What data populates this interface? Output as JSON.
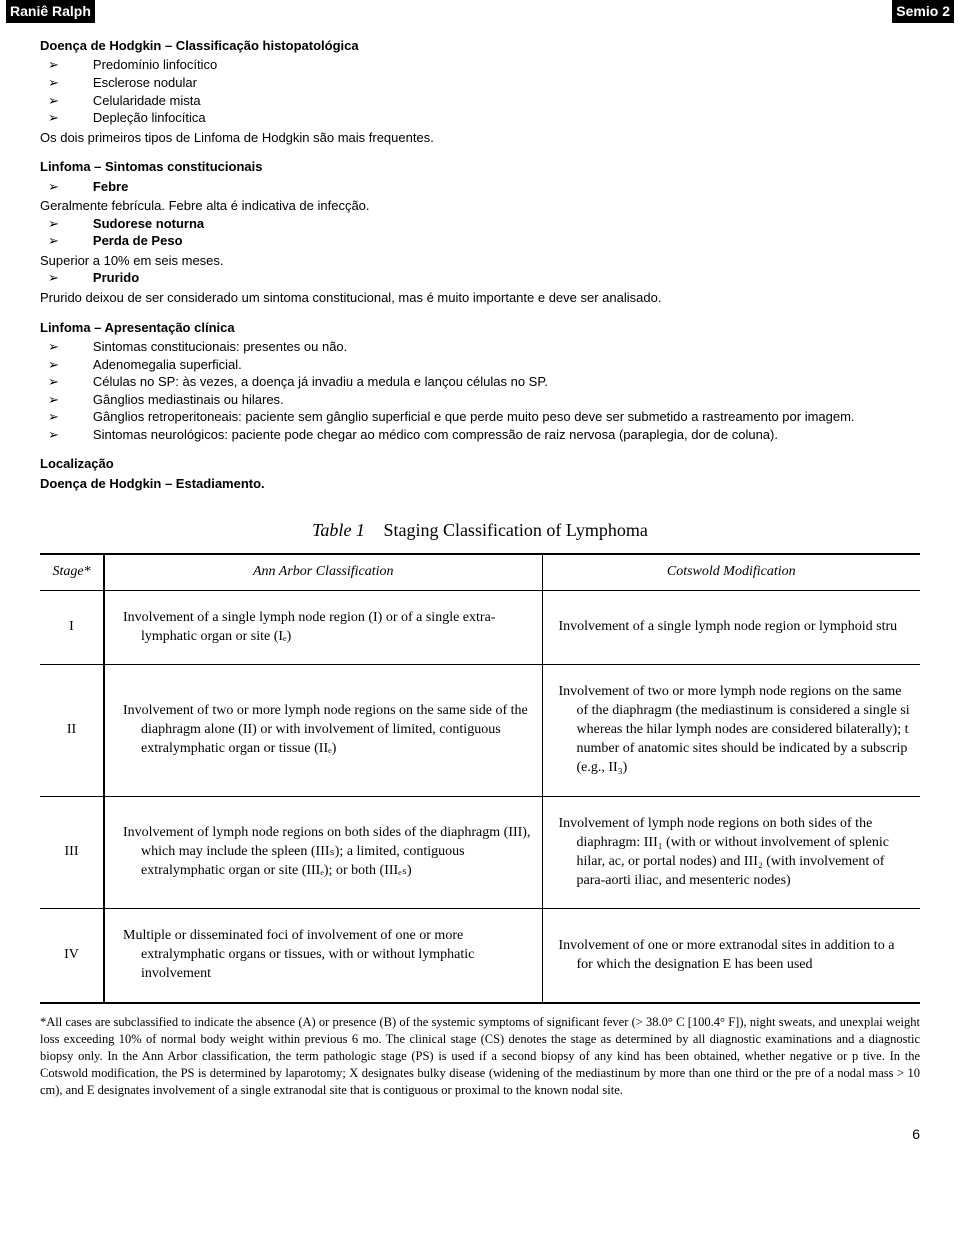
{
  "header": {
    "author": "Raniê Ralph",
    "subject": "Semio 2"
  },
  "sec1": {
    "title": "Doença de Hodgkin – Classificação histopatológica",
    "items": [
      "Predomínio linfocítico",
      "Esclerose nodular",
      "Celularidade mista",
      "Depleção linfocítica"
    ],
    "after": "Os dois primeiros tipos de Linfoma de Hodgkin são mais frequentes."
  },
  "sec2": {
    "title": "Linfoma – Sintomas constitucionais",
    "i1": "Febre",
    "p1": "Geralmente febrícula. Febre alta é indicativa de infecção.",
    "i2": "Sudorese noturna",
    "i3": "Perda de Peso",
    "p3": "Superior a 10% em seis meses.",
    "i4": "Prurido",
    "p4": "Prurido deixou de ser considerado um sintoma constitucional, mas é muito importante e deve ser analisado."
  },
  "sec3": {
    "title": "Linfoma – Apresentação clínica",
    "i1": "Sintomas constitucionais: presentes ou não.",
    "i2": "Adenomegalia superficial.",
    "i3": "Células no SP: às vezes, a doença já invadiu a medula e lançou células no SP.",
    "i4": "Gânglios mediastinais ou hilares.",
    "i5": "Gânglios retroperitoneais: paciente sem gânglio superficial e que perde muito peso deve ser submetido a rastreamento por imagem.",
    "i6": "Sintomas neurológicos: paciente pode chegar ao médico com compressão de raiz nervosa (paraplegia, dor de coluna)."
  },
  "sec4": {
    "t1": "Localização",
    "t2": "Doença de Hodgkin – Estadiamento."
  },
  "table": {
    "caption_label": "Table 1",
    "caption_title": "Staging Classification of Lymphoma",
    "h_stage": "Stage*",
    "h_aa": "Ann Arbor Classification",
    "h_cm": "Cotswold Modification",
    "rows": [
      {
        "stage": "I",
        "aa": "Involvement of a single lymph node region (I) or of a single extra-lymphatic organ or site (Iₑ)",
        "cm": "Involvement of a single lymph node region or lymphoid stru"
      },
      {
        "stage": "II",
        "aa": "Involvement of two or more lymph node regions on the same side of the diaphragm alone (II) or with involvement of limited, contiguous extralymphatic organ or tissue (IIₑ)",
        "cm": "Involvement of two or more lymph node regions on the same of the diaphragm (the mediastinum is considered a single si whereas the hilar lymph nodes are considered bilaterally); t number of anatomic sites should be indicated by a subscrip (e.g., II₃)"
      },
      {
        "stage": "III",
        "aa": "Involvement of lymph node regions on both sides of the diaphragm (III), which may include the spleen (IIIₛ); a limited, contiguous extralymphatic organ or site (IIIₑ); or both (IIIₑₛ)",
        "cm": "Involvement of lymph node regions on both sides of the diaphragm: III₁ (with or without involvement of splenic hilar, ac, or portal nodes) and III₂ (with involvement of para-aorti iliac, and mesenteric nodes)"
      },
      {
        "stage": "IV",
        "aa": "Multiple or disseminated foci of involvement of one or more extralymphatic organs or tissues, with or without lymphatic involvement",
        "cm": "Involvement of one or more extranodal sites in addition to a for which the designation E has been used"
      }
    ]
  },
  "footnote": "*All cases are subclassified to indicate the absence (A) or presence (B) of the systemic symptoms of significant fever (> 38.0° C [100.4° F]), night sweats, and unexplai weight loss exceeding 10% of normal body weight within previous 6 mo. The clinical stage (CS) denotes the stage as determined by all diagnostic examinations and a diagnostic biopsy only. In the Ann Arbor classification, the term pathologic stage (PS) is used if a second biopsy of any kind has been obtained, whether negative or p tive. In the Cotswold modification, the PS is determined by laparotomy; X designates bulky disease (widening of the mediastinum by more than one third or the pre of a nodal mass > 10 cm), and E designates involvement of a single extranodal site that is contiguous or proximal to the known nodal site.",
  "page": "6"
}
